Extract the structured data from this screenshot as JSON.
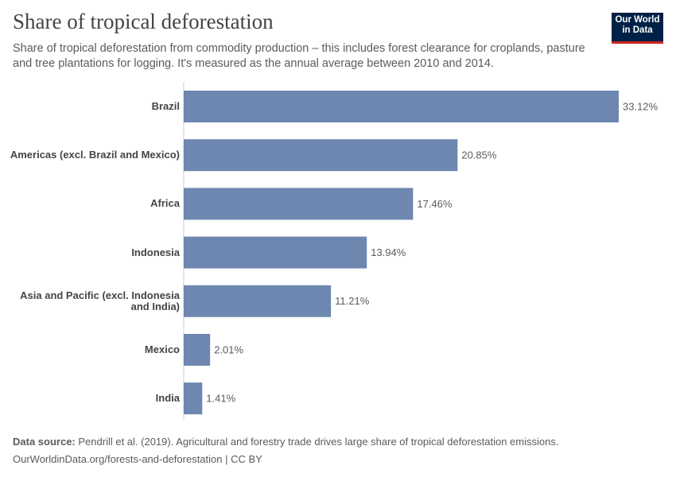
{
  "chart_data": {
    "type": "bar",
    "orientation": "horizontal",
    "title": "Share of tropical deforestation",
    "subtitle": "Share of tropical deforestation from commodity production – this includes forest clearance for croplands, pasture and tree plantations for logging. It's measured as the annual average between 2010 and 2014.",
    "categories": [
      "Brazil",
      "Americas (excl. Brazil and Mexico)",
      "Africa",
      "Indonesia",
      "Asia and Pacific (excl. Indonesia and India)",
      "Mexico",
      "India"
    ],
    "values": [
      33.12,
      20.85,
      17.46,
      13.94,
      11.21,
      2.01,
      1.41
    ],
    "value_labels": [
      "33.12%",
      "20.85%",
      "17.46%",
      "13.94%",
      "11.21%",
      "2.01%",
      "1.41%"
    ],
    "color": "#6d87b0"
  },
  "logo": "Our World in Data",
  "source_label": "Data source:",
  "source": "Pendrill et al. (2019). Agricultural and forestry trade drives large share of tropical deforestation emissions.",
  "footer": "OurWorldinData.org/forests-and-deforestation | CC BY"
}
